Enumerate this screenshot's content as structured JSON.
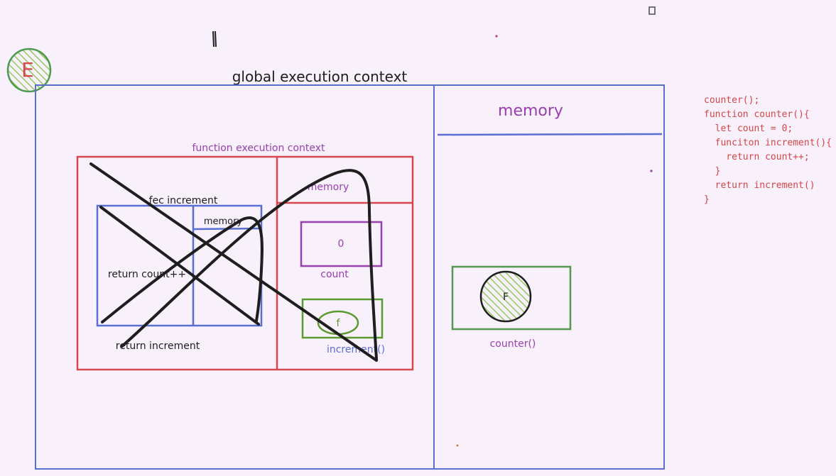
{
  "colors": {
    "background": "#f8f0fb",
    "blue": "#5a6fd0",
    "red": "#d9474e",
    "green": "#4e9a4e",
    "purple": "#9a3fb0",
    "green_hatch": "#94c95f",
    "black": "#1e1e1e",
    "code_red": "#d64545"
  },
  "badge": {
    "letter": "E"
  },
  "global_context": {
    "title": "global execution context",
    "memory_title": "memory",
    "counter_item": {
      "value": "F",
      "label": "counter()"
    }
  },
  "function_context": {
    "title": "function execution context",
    "memory_title": "memory",
    "count_item": {
      "value": "0",
      "label": "count"
    },
    "increment_item": {
      "value": "f",
      "label": "increment()"
    },
    "return_text": "return increment"
  },
  "fec_increment": {
    "title": "fec increment",
    "memory_title": "memory",
    "return_text": "return count++"
  },
  "code": {
    "lines": [
      "counter();",
      "function counter(){",
      "  let count = 0;",
      "  funciton increment(){",
      "    return count++;",
      "  }",
      "  return increment()",
      "}"
    ]
  }
}
